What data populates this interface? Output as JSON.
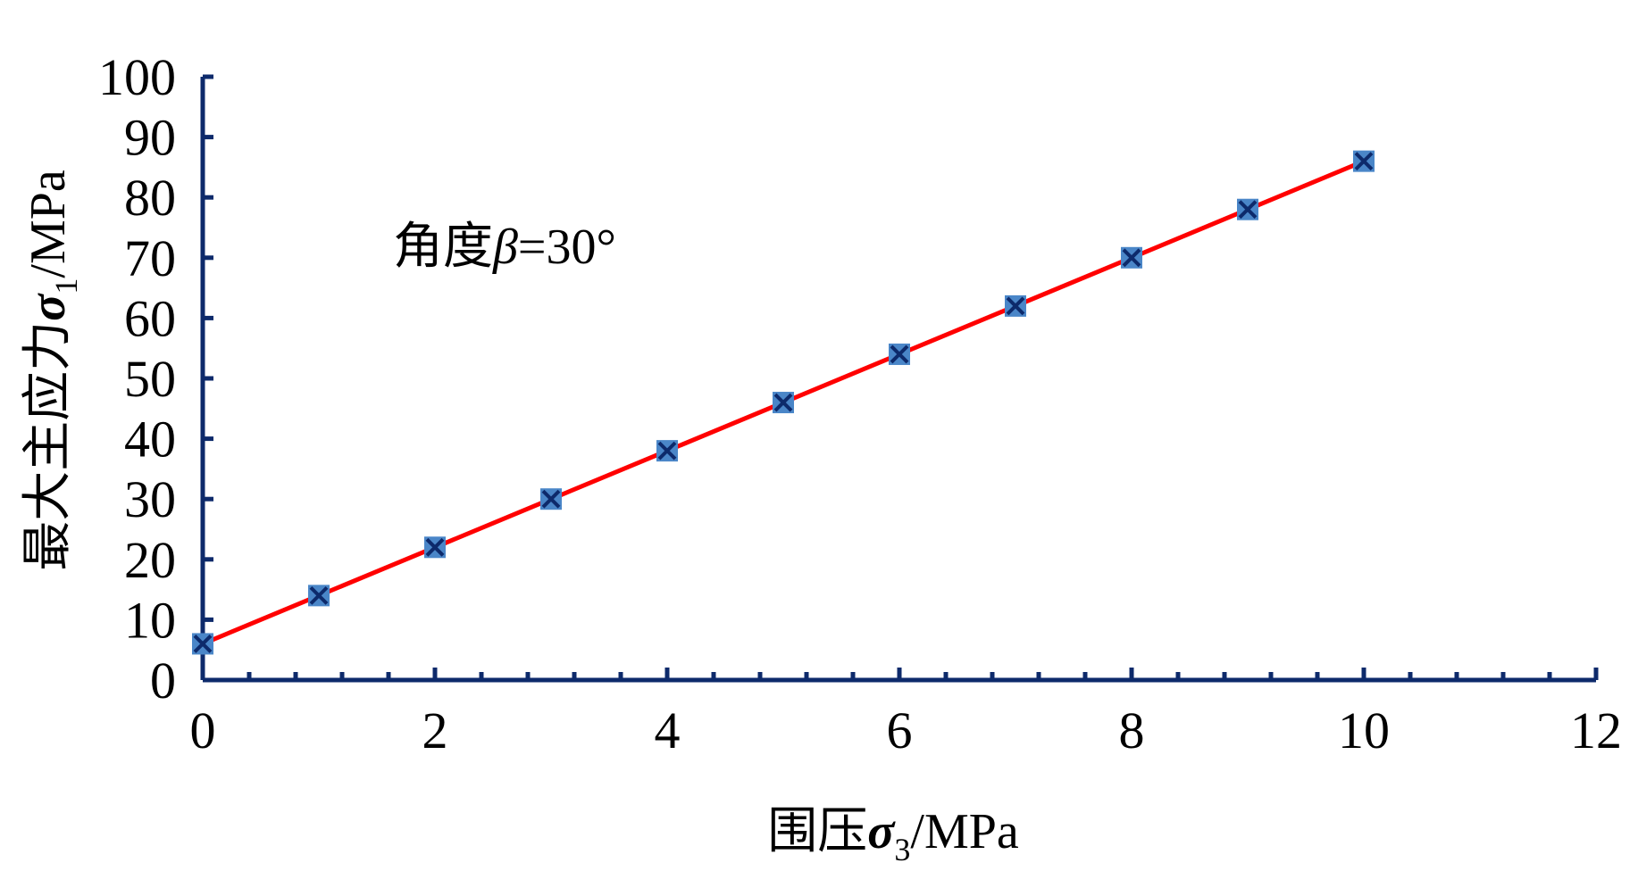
{
  "chart_data": {
    "type": "line",
    "title": "",
    "annotation": "角度β=30°",
    "xlabel": "围压σ3/MPa",
    "xlabel_parts": {
      "prefix": "围压",
      "symbol": "σ",
      "sub": "3",
      "unit": "/MPa"
    },
    "ylabel": "最大主应力σ1/MPa",
    "ylabel_parts": {
      "prefix": "最大主应力",
      "symbol": "σ",
      "sub": "1",
      "unit": "/MPa"
    },
    "annotation_parts": {
      "prefix": "角度",
      "symbol": "β",
      "rest": "=30°"
    },
    "xlim": [
      0,
      12
    ],
    "ylim": [
      0,
      100
    ],
    "xticks": [
      0,
      2,
      4,
      6,
      8,
      10,
      12
    ],
    "yticks": [
      0,
      10,
      20,
      30,
      40,
      50,
      60,
      70,
      80,
      90,
      100
    ],
    "grid": false,
    "series": [
      {
        "x": [
          0,
          1,
          2,
          3,
          4,
          5,
          6,
          7,
          8,
          9,
          10
        ],
        "y": [
          6,
          14,
          22,
          30,
          38,
          46,
          54,
          62,
          70,
          78,
          86
        ],
        "marker": "square-x",
        "marker_color": "#4a86c8",
        "line_color": "#ff0000"
      }
    ],
    "axis_color": "#0d2a6b"
  }
}
